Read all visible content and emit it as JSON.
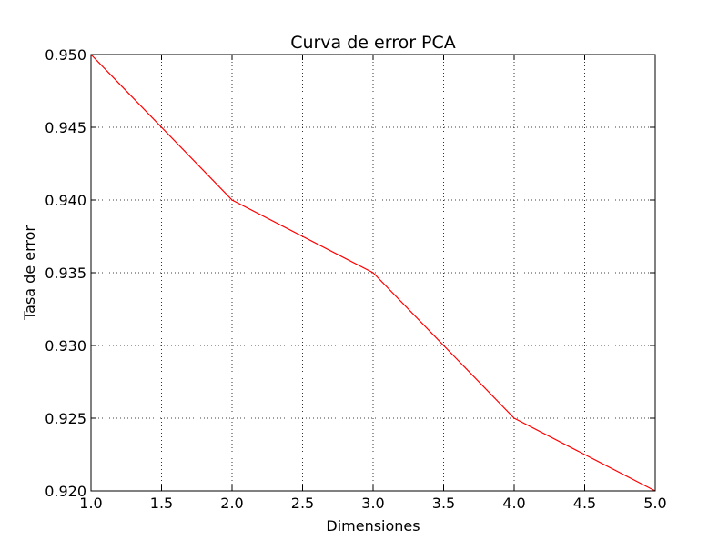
{
  "chart_data": {
    "type": "line",
    "title": "Curva de error PCA",
    "xlabel": "Dimensiones",
    "ylabel": "Tasa de error",
    "xlim": [
      1.0,
      5.0
    ],
    "ylim": [
      0.92,
      0.95
    ],
    "x_ticks": [
      "1.0",
      "1.5",
      "2.0",
      "2.5",
      "3.0",
      "3.5",
      "4.0",
      "4.5",
      "5.0"
    ],
    "y_ticks": [
      "0.920",
      "0.925",
      "0.930",
      "0.935",
      "0.940",
      "0.945",
      "0.950"
    ],
    "grid": true,
    "series": [
      {
        "color": "#ff0000",
        "x": [
          1,
          2,
          3,
          4,
          5
        ],
        "values": [
          0.95,
          0.94,
          0.935,
          0.925,
          0.92
        ]
      }
    ]
  }
}
